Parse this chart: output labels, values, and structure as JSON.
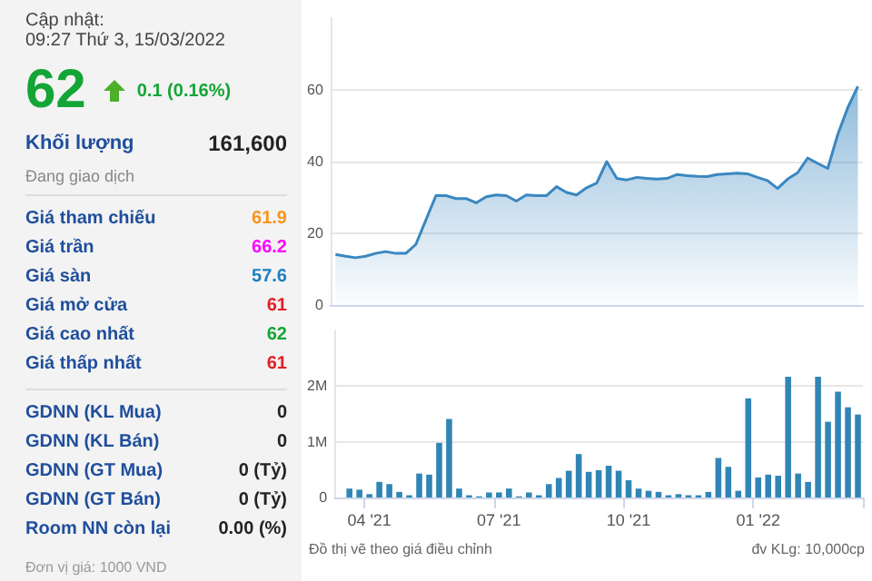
{
  "chart_data": [
    {
      "type": "other",
      "title": "Cập nhật:",
      "subtitle": "09:27 Thứ 3, 15/03/2022",
      "annotations": [
        "62",
        "0.1 (0.16%)",
        "Đang giao dịch",
        "Đơn vị giá: 1000 VND"
      ],
      "categories": [
        "Khối lượng",
        "Giá tham chiếu",
        "Giá trần",
        "Giá sàn",
        "Giá mở cửa",
        "Giá cao nhất",
        "Giá thấp nhất",
        "GDNN (KL Mua)",
        "GDNN (KL Bán)",
        "GDNN (GT Mua)",
        "GDNN (GT Bán)",
        "Room NN còn lại"
      ],
      "value_labels": [
        "161,600",
        "61.9",
        "66.2",
        "57.6",
        "61",
        "62",
        "61",
        "0",
        "0",
        "0 (Tỷ)",
        "0 (Tỷ)",
        "0.00 (%)"
      ],
      "colors": [
        null,
        "#f7941d",
        "#ff00ff",
        "#1b7fc0",
        "#e31e24",
        "#13a535",
        "#e31e24",
        null,
        null,
        null,
        null,
        null
      ]
    },
    {
      "type": "area",
      "tick_labels": "y",
      "grid": "y",
      "categories": [
        null,
        null,
        null,
        null,
        null,
        null,
        null,
        null,
        null,
        null,
        null,
        null,
        null,
        null,
        null,
        null,
        null,
        null,
        null,
        null,
        null,
        null,
        null,
        null,
        null,
        null,
        null,
        null,
        null,
        null,
        null,
        null,
        null,
        null,
        null,
        null,
        null,
        null,
        null,
        null,
        null,
        null,
        null,
        null,
        null,
        null,
        null,
        null,
        null,
        null,
        null,
        null,
        null
      ],
      "series": [
        {
          "color": "#3a87c0",
          "values": [
            14.1,
            13.6,
            13.2,
            13.6,
            14.4,
            14.9,
            14.4,
            14.4,
            16.9,
            23.7,
            30.5,
            30.5,
            29.7,
            29.7,
            28.5,
            30.2,
            30.7,
            30.5,
            29,
            30.7,
            30.5,
            30.5,
            33,
            31.4,
            30.7,
            32.7,
            34,
            40,
            35.3,
            34.9,
            35.6,
            35.3,
            35.1,
            35.3,
            36.4,
            36.1,
            35.9,
            35.8,
            36.4,
            36.6,
            36.8,
            36.6,
            35.6,
            34.7,
            32.5,
            35.1,
            36.9,
            41,
            39.5,
            38.1,
            47.6,
            55.1,
            61
          ]
        }
      ],
      "ylim": [
        0,
        80
      ],
      "yticks": [
        0,
        20,
        40,
        60
      ]
    },
    {
      "type": "bar",
      "grid": "y",
      "annotations": [
        "Đồ thị vẽ theo giá điều chỉnh",
        "đv KLg: 10,000cp"
      ],
      "categories": [
        null,
        null,
        null,
        "04 '21",
        null,
        null,
        null,
        null,
        null,
        null,
        null,
        null,
        null,
        null,
        null,
        null,
        "07 '21",
        null,
        null,
        null,
        null,
        null,
        null,
        null,
        null,
        null,
        null,
        null,
        null,
        "10 '21",
        null,
        null,
        null,
        null,
        null,
        null,
        null,
        null,
        null,
        null,
        null,
        null,
        "01 '22",
        null,
        null,
        null,
        null,
        null,
        null,
        null,
        null,
        null,
        null
      ],
      "series": [
        {
          "color": "#3185b5",
          "values": [
            null,
            160000,
            140000,
            60000,
            280000,
            240000,
            100000,
            40000,
            430000,
            410000,
            980000,
            1410000,
            160000,
            40000,
            20000,
            90000,
            90000,
            160000,
            20000,
            90000,
            40000,
            240000,
            350000,
            480000,
            780000,
            460000,
            490000,
            570000,
            480000,
            310000,
            160000,
            120000,
            100000,
            40000,
            60000,
            40000,
            40000,
            100000,
            710000,
            550000,
            120000,
            1780000,
            360000,
            410000,
            390000,
            2170000,
            430000,
            280000,
            2170000,
            1360000,
            1900000,
            1620000,
            1490000
          ]
        }
      ],
      "ylim": [
        0,
        3000000
      ],
      "yticks": [
        0,
        {
          "value": 1000000,
          "label": "1M"
        },
        {
          "value": 2000000,
          "label": "2M"
        }
      ]
    }
  ]
}
